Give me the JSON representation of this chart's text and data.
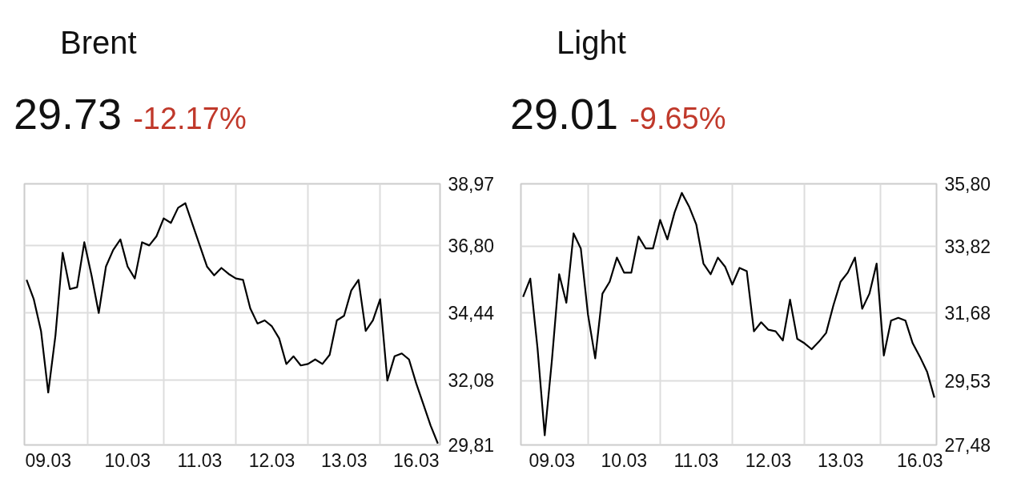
{
  "chart_data": [
    {
      "type": "line",
      "title": "Brent",
      "annotations": [
        "29.73",
        "-12.17%"
      ],
      "categories": [
        null,
        null,
        null,
        "09.03",
        null,
        null,
        null,
        null,
        null,
        null,
        null,
        null,
        null,
        null,
        "10.03",
        null,
        null,
        null,
        null,
        null,
        null,
        null,
        null,
        null,
        "11.03",
        null,
        null,
        null,
        null,
        null,
        null,
        null,
        null,
        null,
        "12.03",
        null,
        null,
        null,
        null,
        null,
        null,
        null,
        null,
        null,
        "13.03",
        null,
        null,
        null,
        null,
        null,
        null,
        null,
        null,
        null,
        "16.03",
        null,
        null,
        null
      ],
      "series": [
        {
          "color": "#000000",
          "values": [
            35.6,
            34.92,
            33.81,
            31.65,
            33.65,
            36.55,
            35.28,
            35.34,
            36.92,
            35.76,
            34.44,
            36.07,
            36.65,
            37.02,
            36.07,
            35.65,
            36.92,
            36.81,
            37.13,
            37.76,
            37.6,
            38.13,
            38.29,
            37.55,
            36.81,
            36.07,
            35.76,
            36.02,
            35.81,
            35.65,
            35.6,
            34.6,
            34.07,
            34.18,
            33.97,
            33.55,
            32.65,
            32.92,
            32.6,
            32.65,
            32.81,
            32.65,
            32.97,
            34.18,
            34.34,
            35.23,
            35.6,
            33.81,
            34.18,
            34.92,
            32.07,
            32.92,
            33.02,
            32.81,
            31.97,
            31.23,
            30.49,
            29.86
          ]
        }
      ],
      "ylim": [
        29.81,
        38.97
      ],
      "yticks": [
        {
          "value": 38.97,
          "label": "38,97"
        },
        {
          "value": 36.8,
          "label": "36,80"
        },
        {
          "value": 34.44,
          "label": "34,44"
        },
        {
          "value": 32.08,
          "label": "32,08"
        },
        {
          "value": 29.81,
          "label": "29,81"
        }
      ],
      "grid": true
    },
    {
      "type": "line",
      "title": "Light",
      "annotations": [
        "29.01",
        "-9.65%"
      ],
      "categories": [
        null,
        null,
        null,
        null,
        "09.03",
        null,
        null,
        null,
        null,
        null,
        null,
        null,
        null,
        null,
        "10.03",
        null,
        null,
        null,
        null,
        null,
        null,
        null,
        null,
        null,
        "11.03",
        null,
        null,
        null,
        null,
        null,
        null,
        null,
        null,
        null,
        "12.03",
        null,
        null,
        null,
        null,
        null,
        null,
        null,
        null,
        null,
        "13.03",
        null,
        null,
        null,
        null,
        null,
        null,
        null,
        null,
        null,
        null,
        "16.03",
        null,
        null
      ],
      "series": [
        {
          "color": "#000000",
          "values": [
            32.2,
            32.78,
            30.57,
            27.79,
            30.19,
            32.92,
            32.01,
            34.22,
            33.74,
            31.63,
            30.24,
            32.3,
            32.68,
            33.45,
            32.97,
            32.97,
            34.12,
            33.74,
            33.74,
            34.65,
            34.03,
            34.89,
            35.51,
            35.08,
            34.51,
            33.26,
            32.92,
            33.45,
            33.16,
            32.59,
            33.12,
            33.02,
            31.1,
            31.39,
            31.15,
            31.1,
            30.81,
            32.11,
            30.86,
            30.72,
            30.53,
            30.77,
            31.05,
            31.92,
            32.68,
            32.97,
            33.45,
            31.82,
            32.3,
            33.26,
            30.33,
            31.44,
            31.53,
            31.44,
            30.72,
            30.29,
            29.81,
            28.99
          ]
        }
      ],
      "ylim": [
        27.48,
        35.8
      ],
      "yticks": [
        {
          "value": 35.8,
          "label": "35,80"
        },
        {
          "value": 33.82,
          "label": "33,82"
        },
        {
          "value": 31.68,
          "label": "31,68"
        },
        {
          "value": 29.53,
          "label": "29,53"
        },
        {
          "value": 27.48,
          "label": "27,48"
        }
      ],
      "grid": true
    }
  ]
}
